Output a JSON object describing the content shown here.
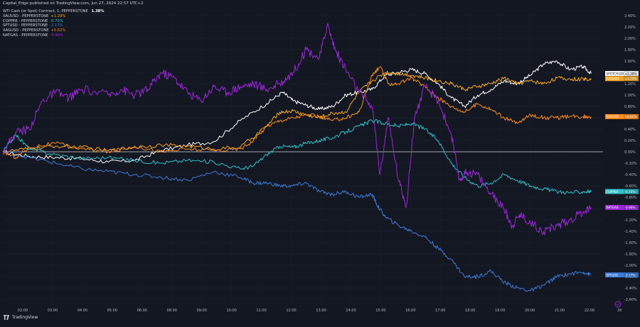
{
  "header": {
    "published": "Capital_Edge published on TradingView.com, Jun 27, 2024 22:57 UTC+2",
    "main_name": "WTI Cash (or Spot) Contract, 1, PEPPERSTONE",
    "main_value": "1.38%"
  },
  "footer": {
    "brand": "TradingView",
    "settings_icon": "settings-icon"
  },
  "colors": {
    "background": "#131722",
    "wti": "#ffffff",
    "xauusd": "#f5a623",
    "copper": "#2fc1c9",
    "spy": "#3a7bd5",
    "xagusd": "#ff8c1a",
    "natgas": "#9b27d8",
    "axis_text": "#b2b5be",
    "zero_line": "#d1d4dc"
  },
  "chart_data": {
    "type": "line",
    "title": "WTI Cash (or Spot) Contract, 1, PEPPERSTONE",
    "xlabel": "",
    "ylabel": "",
    "x_ticks": [
      "02:00",
      "03:00",
      "04:00",
      "05:00",
      "06:00",
      "08:00",
      "09:00",
      "10:00",
      "11:00",
      "12:00",
      "13:00",
      "14:00",
      "15:00",
      "16:00",
      "17:00",
      "18:00",
      "19:00",
      "20:00",
      "21:00",
      "22:00",
      "28"
    ],
    "x_range_hours": [
      1.0,
      23.75
    ],
    "y_ticks": [
      "2.40%",
      "2.20%",
      "2.00%",
      "1.80%",
      "1.60%",
      "1.40%",
      "1.20%",
      "1.00%",
      "0.80%",
      "0.60%",
      "0.40%",
      "0.20%",
      "0.00%",
      "-0.20%",
      "-0.40%",
      "-0.60%",
      "-0.80%",
      "-1.00%",
      "-1.20%",
      "-1.40%",
      "-1.60%",
      "-1.80%",
      "-2.00%",
      "-2.20%",
      "-2.40%",
      "-2.60%"
    ],
    "ylim": [
      -2.7,
      2.45
    ],
    "grid": true,
    "legend_position": "top-left",
    "series": [
      {
        "name": "WTI Cash (or Spot) Contract, 1, PEPPERSTONE",
        "key": "wti",
        "last_label": "SPOTCRUDE",
        "last_value": "+1.38%",
        "points": [
          [
            1.0,
            0.0
          ],
          [
            2.0,
            -0.08
          ],
          [
            3.0,
            -0.1
          ],
          [
            4.0,
            -0.12
          ],
          [
            5.0,
            -0.18
          ],
          [
            6.0,
            -0.15
          ],
          [
            7.0,
            0.02
          ],
          [
            8.0,
            0.12
          ],
          [
            9.0,
            0.18
          ],
          [
            10.0,
            0.55
          ],
          [
            11.0,
            0.85
          ],
          [
            11.6,
            1.05
          ],
          [
            12.0,
            0.9
          ],
          [
            12.5,
            0.82
          ],
          [
            13.0,
            0.75
          ],
          [
            13.5,
            0.8
          ],
          [
            14.0,
            1.0
          ],
          [
            14.5,
            1.05
          ],
          [
            15.0,
            1.1
          ],
          [
            15.5,
            1.35
          ],
          [
            16.0,
            1.4
          ],
          [
            16.5,
            1.45
          ],
          [
            17.0,
            1.38
          ],
          [
            17.5,
            1.2
          ],
          [
            18.0,
            0.95
          ],
          [
            18.5,
            0.8
          ],
          [
            19.0,
            1.0
          ],
          [
            19.5,
            1.1
          ],
          [
            20.0,
            1.25
          ],
          [
            20.5,
            1.2
          ],
          [
            21.0,
            1.35
          ],
          [
            21.5,
            1.55
          ],
          [
            22.0,
            1.6
          ],
          [
            22.5,
            1.45
          ],
          [
            23.0,
            1.5
          ],
          [
            23.3,
            1.38
          ]
        ]
      },
      {
        "name": "XAUUSD - PEPPERSTONE",
        "key": "xauusd",
        "last_label": "XAUUSD",
        "last_value": "+1.29%",
        "points": [
          [
            1.0,
            0.0
          ],
          [
            2.0,
            0.05
          ],
          [
            3.0,
            0.1
          ],
          [
            4.0,
            0.08
          ],
          [
            5.0,
            0.02
          ],
          [
            6.0,
            0.08
          ],
          [
            7.0,
            0.12
          ],
          [
            8.0,
            0.1
          ],
          [
            9.0,
            0.05
          ],
          [
            10.0,
            0.08
          ],
          [
            11.0,
            0.45
          ],
          [
            11.5,
            0.7
          ],
          [
            12.0,
            0.72
          ],
          [
            12.5,
            0.65
          ],
          [
            13.0,
            0.6
          ],
          [
            13.5,
            0.68
          ],
          [
            14.0,
            0.7
          ],
          [
            14.5,
            1.05
          ],
          [
            15.0,
            1.25
          ],
          [
            15.5,
            1.4
          ],
          [
            16.0,
            1.38
          ],
          [
            16.5,
            1.35
          ],
          [
            17.0,
            1.3
          ],
          [
            17.5,
            1.25
          ],
          [
            18.0,
            1.2
          ],
          [
            18.5,
            1.1
          ],
          [
            19.0,
            1.15
          ],
          [
            19.5,
            1.2
          ],
          [
            20.0,
            1.3
          ],
          [
            20.5,
            1.2
          ],
          [
            21.0,
            1.25
          ],
          [
            21.5,
            1.2
          ],
          [
            22.0,
            1.3
          ],
          [
            22.5,
            1.28
          ],
          [
            23.0,
            1.28
          ],
          [
            23.3,
            1.29
          ]
        ]
      },
      {
        "name": "COPPER - PEPPERSTONE",
        "key": "copper",
        "last_label": "COPPER",
        "last_value": "-0.70%",
        "points": [
          [
            1.0,
            0.0
          ],
          [
            1.5,
            0.3
          ],
          [
            2.0,
            0.05
          ],
          [
            3.0,
            -0.05
          ],
          [
            4.0,
            -0.12
          ],
          [
            5.0,
            -0.1
          ],
          [
            6.0,
            -0.15
          ],
          [
            7.0,
            -0.2
          ],
          [
            8.0,
            -0.15
          ],
          [
            9.0,
            -0.18
          ],
          [
            10.0,
            -0.3
          ],
          [
            10.5,
            -0.25
          ],
          [
            11.0,
            -0.05
          ],
          [
            11.5,
            0.1
          ],
          [
            12.0,
            0.08
          ],
          [
            12.5,
            0.15
          ],
          [
            13.0,
            0.2
          ],
          [
            13.5,
            0.25
          ],
          [
            14.0,
            0.35
          ],
          [
            14.5,
            0.45
          ],
          [
            15.0,
            0.55
          ],
          [
            15.5,
            0.5
          ],
          [
            16.0,
            0.45
          ],
          [
            16.5,
            0.5
          ],
          [
            17.0,
            0.4
          ],
          [
            17.5,
            0.2
          ],
          [
            18.0,
            -0.2
          ],
          [
            18.5,
            -0.45
          ],
          [
            19.0,
            -0.6
          ],
          [
            19.5,
            -0.55
          ],
          [
            20.0,
            -0.4
          ],
          [
            20.5,
            -0.5
          ],
          [
            21.0,
            -0.6
          ],
          [
            21.5,
            -0.65
          ],
          [
            22.0,
            -0.7
          ],
          [
            22.5,
            -0.72
          ],
          [
            23.0,
            -0.7
          ],
          [
            23.3,
            -0.7
          ]
        ]
      },
      {
        "name": "SPTUSD - PEPPERSTONE",
        "key": "spy",
        "last_label": "SPTUSD",
        "last_value": "-2.17%",
        "points": [
          [
            1.0,
            0.0
          ],
          [
            2.0,
            -0.1
          ],
          [
            3.0,
            -0.2
          ],
          [
            4.0,
            -0.3
          ],
          [
            5.0,
            -0.35
          ],
          [
            6.0,
            -0.4
          ],
          [
            7.0,
            -0.45
          ],
          [
            8.0,
            -0.5
          ],
          [
            9.0,
            -0.35
          ],
          [
            10.0,
            -0.45
          ],
          [
            10.5,
            -0.55
          ],
          [
            11.0,
            -0.55
          ],
          [
            11.5,
            -0.6
          ],
          [
            12.0,
            -0.6
          ],
          [
            12.5,
            -0.55
          ],
          [
            13.0,
            -0.7
          ],
          [
            13.5,
            -0.75
          ],
          [
            14.0,
            -0.7
          ],
          [
            14.5,
            -0.8
          ],
          [
            15.0,
            -0.75
          ],
          [
            15.2,
            -0.95
          ],
          [
            15.5,
            -1.15
          ],
          [
            16.0,
            -1.3
          ],
          [
            16.5,
            -1.4
          ],
          [
            17.0,
            -1.5
          ],
          [
            17.5,
            -1.7
          ],
          [
            18.0,
            -1.9
          ],
          [
            18.5,
            -2.2
          ],
          [
            19.0,
            -2.2
          ],
          [
            19.5,
            -2.1
          ],
          [
            20.0,
            -2.3
          ],
          [
            20.5,
            -2.4
          ],
          [
            21.0,
            -2.45
          ],
          [
            21.5,
            -2.35
          ],
          [
            22.0,
            -2.2
          ],
          [
            22.5,
            -2.15
          ],
          [
            23.0,
            -2.12
          ],
          [
            23.3,
            -2.17
          ]
        ]
      },
      {
        "name": "XAGUSD - PEPPERSTONE",
        "key": "xagusd",
        "last_label": "XAGUSD",
        "last_value": "+0.62%",
        "points": [
          [
            1.0,
            0.0
          ],
          [
            1.5,
            -0.1
          ],
          [
            2.0,
            0.08
          ],
          [
            3.0,
            0.15
          ],
          [
            4.0,
            0.05
          ],
          [
            5.0,
            0.0
          ],
          [
            6.0,
            0.1
          ],
          [
            7.0,
            0.0
          ],
          [
            8.0,
            0.05
          ],
          [
            9.0,
            0.02
          ],
          [
            10.0,
            0.05
          ],
          [
            10.5,
            0.2
          ],
          [
            11.0,
            0.45
          ],
          [
            11.5,
            0.55
          ],
          [
            12.0,
            0.6
          ],
          [
            12.5,
            0.65
          ],
          [
            13.0,
            0.62
          ],
          [
            13.5,
            0.55
          ],
          [
            14.0,
            0.6
          ],
          [
            14.5,
            0.7
          ],
          [
            15.0,
            1.35
          ],
          [
            15.3,
            1.5
          ],
          [
            15.6,
            1.2
          ],
          [
            16.0,
            1.2
          ],
          [
            16.5,
            1.3
          ],
          [
            17.0,
            1.15
          ],
          [
            17.5,
            0.95
          ],
          [
            18.0,
            0.8
          ],
          [
            18.5,
            0.7
          ],
          [
            19.0,
            0.85
          ],
          [
            19.5,
            0.75
          ],
          [
            20.0,
            0.6
          ],
          [
            20.5,
            0.5
          ],
          [
            21.0,
            0.65
          ],
          [
            21.5,
            0.6
          ],
          [
            22.0,
            0.6
          ],
          [
            22.5,
            0.62
          ],
          [
            23.0,
            0.62
          ],
          [
            23.3,
            0.62
          ]
        ]
      },
      {
        "name": "NATGAS - PEPPERSTONE",
        "key": "natgas",
        "last_label": "NATGAS",
        "last_value": "-0.98%",
        "points": [
          [
            1.0,
            0.0
          ],
          [
            1.5,
            0.35
          ],
          [
            2.0,
            0.4
          ],
          [
            2.5,
            0.9
          ],
          [
            3.0,
            1.05
          ],
          [
            3.5,
            0.95
          ],
          [
            4.0,
            1.1
          ],
          [
            5.0,
            1.0
          ],
          [
            5.5,
            1.1
          ],
          [
            6.0,
            1.0
          ],
          [
            6.5,
            1.1
          ],
          [
            7.0,
            1.4
          ],
          [
            7.5,
            1.3
          ],
          [
            8.0,
            1.05
          ],
          [
            8.5,
            0.9
          ],
          [
            9.0,
            1.15
          ],
          [
            9.5,
            1.05
          ],
          [
            10.0,
            1.15
          ],
          [
            10.5,
            1.2
          ],
          [
            11.0,
            1.1
          ],
          [
            11.5,
            1.2
          ],
          [
            12.0,
            1.4
          ],
          [
            12.5,
            1.8
          ],
          [
            13.0,
            1.65
          ],
          [
            13.3,
            2.25
          ],
          [
            13.6,
            1.8
          ],
          [
            14.0,
            1.45
          ],
          [
            14.5,
            1.05
          ],
          [
            15.0,
            0.8
          ],
          [
            15.3,
            -0.4
          ],
          [
            15.6,
            0.6
          ],
          [
            16.0,
            -0.5
          ],
          [
            16.3,
            -0.95
          ],
          [
            16.6,
            0.6
          ],
          [
            17.0,
            1.15
          ],
          [
            17.5,
            0.9
          ],
          [
            18.0,
            0.3
          ],
          [
            18.3,
            -0.5
          ],
          [
            18.6,
            -0.35
          ],
          [
            19.0,
            -0.4
          ],
          [
            19.5,
            -0.75
          ],
          [
            20.0,
            -1.0
          ],
          [
            20.3,
            -1.3
          ],
          [
            20.6,
            -1.1
          ],
          [
            21.0,
            -1.25
          ],
          [
            21.5,
            -1.4
          ],
          [
            22.0,
            -1.3
          ],
          [
            22.5,
            -1.2
          ],
          [
            23.0,
            -1.05
          ],
          [
            23.3,
            -0.98
          ]
        ]
      }
    ]
  }
}
